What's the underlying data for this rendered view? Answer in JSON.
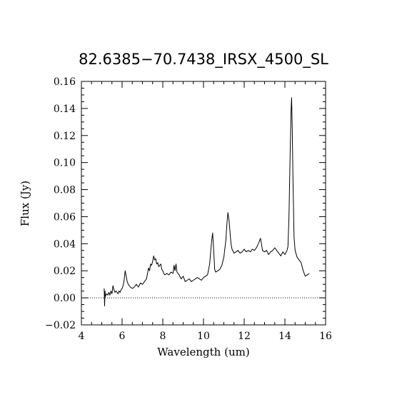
{
  "chart_data": {
    "type": "line",
    "title": "82.6385−70.7438_IRSX_4500_SL",
    "xlabel": "Wavelength (um)",
    "ylabel": "Flux (Jy)",
    "xlim": [
      4,
      16
    ],
    "ylim": [
      -0.02,
      0.16
    ],
    "x_ticks": [
      4,
      6,
      8,
      10,
      12,
      14,
      16
    ],
    "x_tick_labels": [
      "4",
      "6",
      "8",
      "10",
      "12",
      "14",
      "16"
    ],
    "y_ticks": [
      -0.02,
      0.0,
      0.02,
      0.04,
      0.06,
      0.08,
      0.1,
      0.12,
      0.14,
      0.16
    ],
    "y_tick_labels": [
      "−0.02",
      "0.00",
      "0.02",
      "0.04",
      "0.06",
      "0.08",
      "0.10",
      "0.12",
      "0.14",
      "0.16"
    ],
    "reference_line_y": 0.0,
    "grid": false,
    "series": [
      {
        "x": [
          5.12,
          5.14,
          5.16,
          5.18,
          5.2,
          5.25,
          5.3,
          5.35,
          5.4,
          5.45,
          5.5,
          5.55,
          5.6,
          5.65,
          5.7,
          5.75,
          5.8,
          5.85,
          5.9,
          5.95,
          6.0,
          6.05,
          6.1,
          6.15,
          6.2,
          6.25,
          6.3,
          6.35,
          6.4,
          6.5,
          6.6,
          6.7,
          6.8,
          6.9,
          7.0,
          7.1,
          7.2,
          7.3,
          7.35,
          7.4,
          7.45,
          7.5,
          7.55,
          7.6,
          7.65,
          7.7,
          7.75,
          7.8,
          7.85,
          7.9,
          7.95,
          8.0,
          8.05,
          8.1,
          8.2,
          8.3,
          8.4,
          8.5,
          8.55,
          8.6,
          8.65,
          8.7,
          8.8,
          8.9,
          9.0,
          9.1,
          9.2,
          9.3,
          9.4,
          9.5,
          9.6,
          9.7,
          9.8,
          9.9,
          10.0,
          10.1,
          10.2,
          10.3,
          10.4,
          10.45,
          10.5,
          10.55,
          10.6,
          10.7,
          10.8,
          10.9,
          11.0,
          11.1,
          11.15,
          11.2,
          11.25,
          11.3,
          11.35,
          11.4,
          11.5,
          11.6,
          11.7,
          11.8,
          11.9,
          12.0,
          12.1,
          12.2,
          12.3,
          12.4,
          12.5,
          12.6,
          12.7,
          12.8,
          12.85,
          12.9,
          13.0,
          13.1,
          13.2,
          13.3,
          13.4,
          13.5,
          13.6,
          13.7,
          13.8,
          13.9,
          14.0,
          14.1,
          14.15,
          14.2,
          14.25,
          14.3,
          14.33,
          14.36,
          14.4,
          14.45,
          14.5,
          14.6,
          14.7,
          14.8,
          14.9,
          15.0,
          15.1,
          15.2
        ],
        "y": [
          0.007,
          -0.006,
          0.005,
          0.001,
          0.002,
          0.003,
          0.002,
          0.004,
          0.002,
          0.005,
          0.003,
          0.009,
          0.006,
          0.004,
          0.005,
          0.004,
          0.003,
          0.005,
          0.004,
          0.006,
          0.007,
          0.009,
          0.013,
          0.02,
          0.016,
          0.012,
          0.01,
          0.009,
          0.008,
          0.007,
          0.008,
          0.01,
          0.008,
          0.011,
          0.01,
          0.012,
          0.014,
          0.022,
          0.02,
          0.025,
          0.024,
          0.027,
          0.031,
          0.028,
          0.029,
          0.025,
          0.026,
          0.023,
          0.024,
          0.025,
          0.021,
          0.02,
          0.018,
          0.017,
          0.018,
          0.017,
          0.019,
          0.018,
          0.024,
          0.02,
          0.025,
          0.019,
          0.017,
          0.014,
          0.016,
          0.012,
          0.013,
          0.014,
          0.012,
          0.013,
          0.014,
          0.015,
          0.014,
          0.013,
          0.015,
          0.016,
          0.017,
          0.025,
          0.042,
          0.048,
          0.035,
          0.021,
          0.019,
          0.02,
          0.021,
          0.024,
          0.03,
          0.043,
          0.055,
          0.063,
          0.058,
          0.049,
          0.04,
          0.036,
          0.033,
          0.034,
          0.035,
          0.033,
          0.034,
          0.036,
          0.034,
          0.035,
          0.034,
          0.036,
          0.035,
          0.037,
          0.04,
          0.044,
          0.04,
          0.035,
          0.034,
          0.035,
          0.032,
          0.034,
          0.035,
          0.037,
          0.035,
          0.033,
          0.031,
          0.034,
          0.032,
          0.035,
          0.038,
          0.06,
          0.1,
          0.138,
          0.148,
          0.125,
          0.085,
          0.045,
          0.035,
          0.03,
          0.028,
          0.026,
          0.02,
          0.016,
          0.017,
          0.018
        ]
      }
    ]
  }
}
